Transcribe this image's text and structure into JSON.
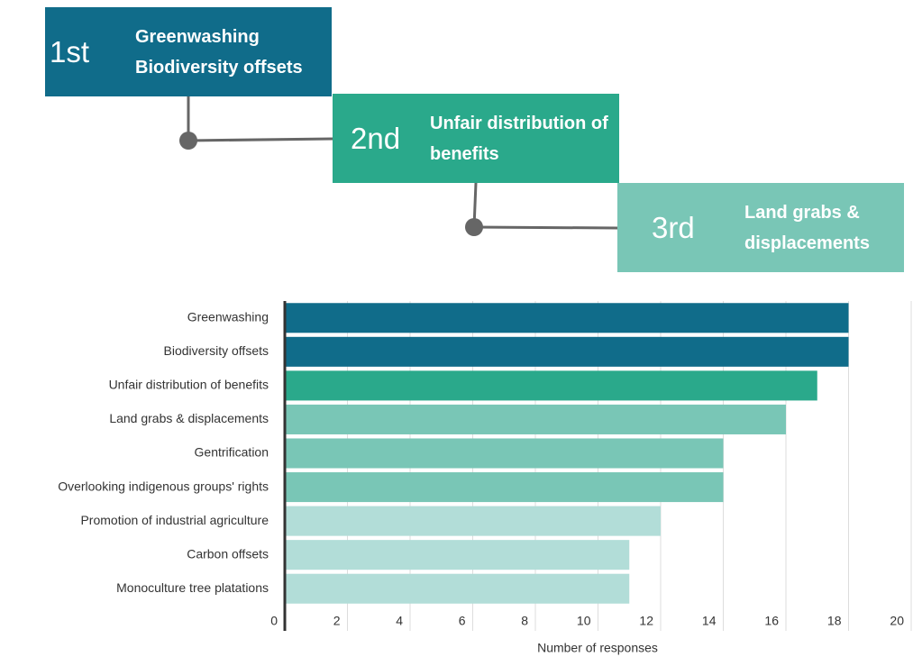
{
  "ranking": [
    {
      "rank": "1st",
      "items": [
        "Greenwashing",
        "Biodiversity offsets"
      ]
    },
    {
      "rank": "2nd",
      "items": [
        "Unfair distribution of benefits"
      ]
    },
    {
      "rank": "3rd",
      "items": [
        "Land grabs & displacements"
      ]
    }
  ],
  "chart_data": {
    "type": "hbar",
    "categories": [
      "Greenwashing",
      "Biodiversity offsets",
      "Unfair distribution of benefits",
      "Land grabs & displacements",
      "Gentrification",
      "Overlooking indigenous groups' rights",
      "Promotion of industrial agriculture",
      "Carbon offsets",
      "Monoculture tree platations"
    ],
    "values": [
      18,
      18,
      17,
      16,
      14,
      14,
      12,
      11,
      11
    ],
    "colors": [
      "#106c8a",
      "#106c8a",
      "#2aa98b",
      "#79c6b6",
      "#79c6b6",
      "#79c6b6",
      "#b2ddd8",
      "#b2ddd8",
      "#b2ddd8"
    ],
    "xlim": [
      0,
      20
    ],
    "xticks": [
      0,
      2,
      4,
      6,
      8,
      10,
      12,
      14,
      16,
      18,
      20
    ],
    "xlabel": "Number of responses",
    "grid": true
  }
}
